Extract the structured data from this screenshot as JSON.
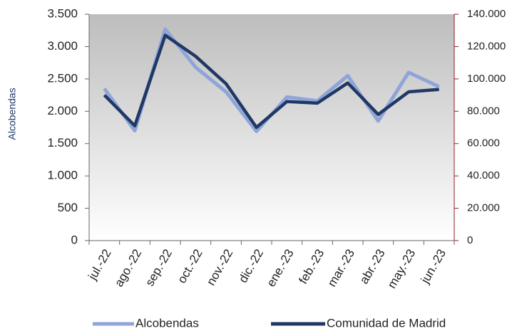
{
  "chart_data": {
    "type": "line",
    "ylabel": "Alcobendas",
    "categories": [
      "jul.-22",
      "ago.-22",
      "sep.-22",
      "oct.-22",
      "nov.-22",
      "dic.-22",
      "ene.-23",
      "feb.-23",
      "mar.-23",
      "abr.-23",
      "may.-23",
      "jun.-23"
    ],
    "series": [
      {
        "name": "Alcobendas",
        "color": "#8fa4d8",
        "values": [
          2350,
          1700,
          3270,
          2680,
          2300,
          1690,
          2220,
          2160,
          2550,
          1850,
          2600,
          2380
        ]
      },
      {
        "name": "Comunidad de Madrid",
        "color": "#1f3864",
        "axis": "y2",
        "values": [
          90000,
          71000,
          127000,
          114000,
          97000,
          70000,
          86000,
          85000,
          97500,
          78000,
          92000,
          93500
        ]
      }
    ],
    "ylim": [
      0,
      3500
    ],
    "yticks": [
      0,
      500,
      {
        "value": 1000,
        "label": "1.000"
      },
      {
        "value": 1500,
        "label": "1.500"
      },
      {
        "value": 2000,
        "label": "2.000"
      },
      {
        "value": 2500,
        "label": "2.500"
      },
      {
        "value": 3000,
        "label": "3.000"
      },
      {
        "value": 3500,
        "label": "3.500"
      }
    ],
    "y2lim": [
      0,
      140000
    ],
    "y2ticks": [
      0,
      {
        "value": 20000,
        "label": "20.000"
      },
      {
        "value": 40000,
        "label": "40.000"
      },
      {
        "value": 60000,
        "label": "60.000"
      },
      {
        "value": 80000,
        "label": "80.000"
      },
      {
        "value": 100000,
        "label": "100.000"
      },
      {
        "value": 120000,
        "label": "120.000"
      },
      {
        "value": 140000,
        "label": "140.000"
      }
    ],
    "y2color": "#8b2323",
    "legend": "bottom"
  }
}
